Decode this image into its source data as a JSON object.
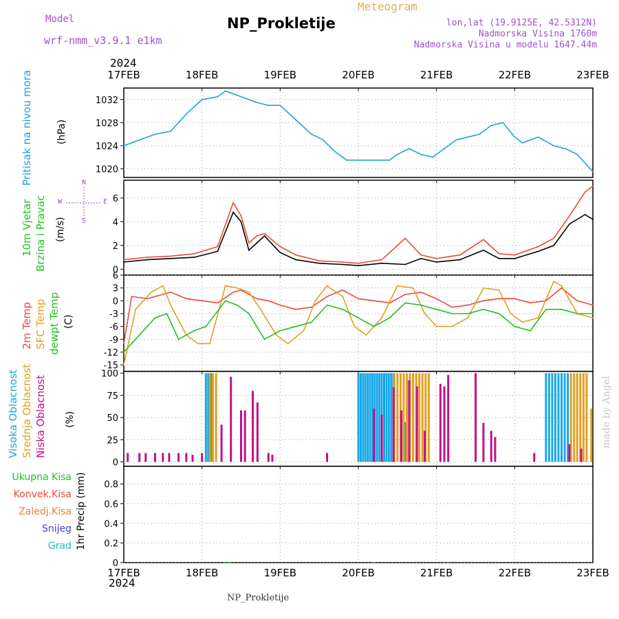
{
  "header": {
    "model_label": "Model",
    "model_name": "wrf-nmm_v3.9.1 e1km",
    "title": "NP_Prokletije",
    "product": "Meteogram",
    "coords": "lon,lat (19.9125E, 42.5312N)",
    "elevation": "Nadmorska Visina 1760m",
    "model_elevation": "Nadmorska Visina u modelu 1647.44m",
    "footer": "NP_Prokletije",
    "credit": "made by Angel",
    "year_top": "2024",
    "year_bottom": "2024"
  },
  "colors": {
    "pressure": "#1aa3e0",
    "t2m": "#e84a3a",
    "sfc": "#e0a020",
    "dewpt": "#22c022",
    "high_cloud": "#18a8e8",
    "mid_cloud": "#e0a020",
    "low_cloud": "#c0108a",
    "wind_speed": "#000000",
    "gust": "#e84a3a",
    "purple": "#a050d0"
  },
  "chart_data": [
    {
      "type": "line",
      "panel": "pressure",
      "y_labels": [
        "Pritisak na nivou mora",
        "(hPa)"
      ],
      "x_ticks": [
        "17FEB",
        "18FEB",
        "19FEB",
        "20FEB",
        "21FEB",
        "22FEB",
        "23FEB"
      ],
      "ylim": [
        1018.5,
        1034
      ],
      "yticks": [
        1020,
        1024,
        1028,
        1032
      ],
      "grid": true,
      "series": [
        {
          "color_key": "pressure",
          "x": [
            0,
            0.1,
            0.2,
            0.4,
            0.6,
            0.8,
            1.0,
            1.2,
            1.3,
            1.5,
            1.7,
            1.85,
            2.0,
            2.2,
            2.4,
            2.55,
            2.7,
            2.85,
            3.0,
            3.2,
            3.4,
            3.5,
            3.65,
            3.8,
            3.95,
            4.1,
            4.25,
            4.4,
            4.55,
            4.7,
            4.85,
            5.0,
            5.1,
            5.3,
            5.5,
            5.65,
            5.8,
            6.0
          ],
          "values": [
            1024,
            1024.5,
            1025,
            1026,
            1026.5,
            1029.5,
            1032,
            1032.5,
            1033.5,
            1032.5,
            1031.5,
            1031,
            1031,
            1028.5,
            1026,
            1025,
            1023,
            1021.5,
            1021.5,
            1021.5,
            1021.5,
            1022.5,
            1023.5,
            1022.5,
            1022,
            1023.5,
            1025,
            1025.5,
            1026,
            1027.5,
            1028,
            1025.5,
            1024.5,
            1025.5,
            1024,
            1023.5,
            1022.5,
            1019.5
          ]
        }
      ]
    },
    {
      "type": "line",
      "panel": "wind",
      "y_labels": [
        "10m Vjetar",
        "Brzina i Pravac",
        "(m/s)"
      ],
      "compass": {
        "n": "N",
        "w": "W",
        "e": "E",
        "s": "S"
      },
      "ylim": [
        -0.5,
        7.5
      ],
      "yticks": [
        0,
        2,
        4,
        6
      ],
      "grid": true,
      "series": [
        {
          "color_key": "wind_speed",
          "x": [
            0,
            0.3,
            0.6,
            0.9,
            1.2,
            1.4,
            1.5,
            1.6,
            1.7,
            1.8,
            2.0,
            2.2,
            2.5,
            2.8,
            3.0,
            3.3,
            3.6,
            3.8,
            4.0,
            4.3,
            4.6,
            4.8,
            5.0,
            5.3,
            5.5,
            5.7,
            5.9,
            6.0
          ],
          "values": [
            0.6,
            0.8,
            0.9,
            1.0,
            1.5,
            4.8,
            4.0,
            1.6,
            2.2,
            2.8,
            1.4,
            0.8,
            0.5,
            0.4,
            0.3,
            0.5,
            0.4,
            0.9,
            0.6,
            0.8,
            1.6,
            0.9,
            0.9,
            1.5,
            2.0,
            3.8,
            4.6,
            4.2
          ]
        },
        {
          "color_key": "gust",
          "x": [
            0,
            0.3,
            0.6,
            0.9,
            1.2,
            1.4,
            1.5,
            1.6,
            1.7,
            1.8,
            2.0,
            2.2,
            2.5,
            2.8,
            3.0,
            3.3,
            3.6,
            3.8,
            4.0,
            4.3,
            4.6,
            4.8,
            5.0,
            5.3,
            5.5,
            5.7,
            5.9,
            6.0
          ],
          "values": [
            0.8,
            1.0,
            1.1,
            1.3,
            1.9,
            5.6,
            4.5,
            2.2,
            2.8,
            3.0,
            1.9,
            1.2,
            0.7,
            0.6,
            0.5,
            0.8,
            2.6,
            1.2,
            0.9,
            1.2,
            2.5,
            1.3,
            1.2,
            1.9,
            2.6,
            4.5,
            6.5,
            7.0
          ]
        }
      ]
    },
    {
      "type": "line",
      "panel": "temperature",
      "y_labels": [
        "2m Temp",
        "SFC Temp",
        "dewpt Temp",
        "(C)"
      ],
      "ylim": [
        -16.5,
        6
      ],
      "yticks": [
        -15,
        -12,
        -9,
        -6,
        -3,
        0,
        3,
        6
      ],
      "grid": true,
      "series": [
        {
          "name": "2m Temp",
          "color_key": "t2m",
          "x": [
            0,
            0.1,
            0.3,
            0.5,
            0.6,
            0.8,
            1.0,
            1.2,
            1.4,
            1.5,
            1.7,
            1.85,
            2.0,
            2.2,
            2.4,
            2.6,
            2.8,
            3.0,
            3.2,
            3.4,
            3.6,
            3.8,
            4.0,
            4.2,
            4.4,
            4.6,
            4.8,
            5.0,
            5.2,
            5.4,
            5.6,
            5.8,
            6.0
          ],
          "values": [
            -10,
            1.0,
            0.5,
            1.5,
            2.0,
            0.5,
            0,
            -0.5,
            2.0,
            2.5,
            0.5,
            0,
            -1,
            -2,
            -1.5,
            1.0,
            2.5,
            0.5,
            0,
            -0.5,
            1.5,
            2.0,
            0.5,
            -1.5,
            -1,
            0,
            0.5,
            0.5,
            -0.5,
            0,
            3.0,
            0,
            -1
          ]
        },
        {
          "name": "SFC Temp",
          "color_key": "sfc",
          "x": [
            0,
            0.15,
            0.35,
            0.5,
            0.6,
            0.8,
            0.95,
            1.1,
            1.3,
            1.45,
            1.6,
            1.75,
            1.95,
            2.1,
            2.3,
            2.45,
            2.6,
            2.8,
            2.95,
            3.1,
            3.3,
            3.5,
            3.7,
            3.85,
            4.0,
            4.2,
            4.4,
            4.6,
            4.8,
            4.95,
            5.1,
            5.3,
            5.5,
            5.6,
            5.8,
            6.0
          ],
          "values": [
            -15,
            -2,
            2.0,
            3.5,
            -1,
            -8,
            -10,
            -10,
            3.5,
            3.0,
            2.0,
            -2,
            -8,
            -10,
            -7,
            0,
            3.5,
            1,
            -6,
            -8,
            -4,
            3.5,
            3.0,
            -3,
            -6,
            -6,
            -4,
            3.0,
            2.5,
            -3,
            -5,
            -4,
            4.5,
            3.5,
            -3,
            -4
          ]
        },
        {
          "name": "dewpt Temp",
          "color_key": "dewpt",
          "x": [
            0,
            0.2,
            0.4,
            0.55,
            0.7,
            0.9,
            1.05,
            1.3,
            1.45,
            1.6,
            1.8,
            2.0,
            2.2,
            2.4,
            2.6,
            2.8,
            3.0,
            3.2,
            3.4,
            3.6,
            3.8,
            4.0,
            4.2,
            4.4,
            4.6,
            4.8,
            5.0,
            5.2,
            5.4,
            5.6,
            5.8,
            6.0
          ],
          "values": [
            -12,
            -8,
            -4,
            -3,
            -9,
            -7,
            -6,
            0,
            -1,
            -3,
            -9,
            -7,
            -6,
            -5,
            -1,
            -2,
            -4,
            -6,
            -4,
            -0.5,
            -1,
            -2,
            -3,
            -3,
            -2,
            -3,
            -6,
            -7,
            -2,
            -2,
            -3,
            -3
          ]
        }
      ]
    },
    {
      "type": "bar",
      "panel": "clouds",
      "y_labels": [
        "Visoka Oblacnost",
        "Srednja Oblacnost",
        "Niska Oblacnost",
        "(%)"
      ],
      "ylim": [
        -5,
        102
      ],
      "yticks": [
        0,
        25,
        50,
        75,
        100
      ],
      "grid": true,
      "series": [
        {
          "name": "Visoka Oblacnost",
          "color_key": "high_cloud",
          "x": [
            1.05,
            1.08,
            1.12,
            3.0,
            3.03,
            3.06,
            3.09,
            3.12,
            3.15,
            3.18,
            3.21,
            3.24,
            3.27,
            3.3,
            3.33,
            3.36,
            3.39,
            3.42,
            3.45,
            3.6,
            5.4,
            5.44,
            5.48,
            5.52,
            5.56,
            5.6,
            5.64,
            5.68
          ],
          "values": [
            100,
            100,
            100,
            100,
            100,
            100,
            100,
            100,
            100,
            100,
            100,
            100,
            100,
            100,
            100,
            100,
            100,
            100,
            100,
            45,
            100,
            100,
            100,
            100,
            100,
            100,
            100,
            100
          ]
        },
        {
          "name": "Srednja Oblacnost",
          "color_key": "mid_cloud",
          "x": [
            1.1,
            1.14,
            1.18,
            3.46,
            3.5,
            3.54,
            3.58,
            3.62,
            3.66,
            3.7,
            3.74,
            3.78,
            3.82,
            3.86,
            3.9,
            5.72,
            5.76,
            5.8,
            5.84,
            5.88,
            5.92,
            5.98
          ],
          "values": [
            100,
            100,
            100,
            100,
            100,
            100,
            100,
            100,
            100,
            100,
            100,
            100,
            100,
            100,
            100,
            100,
            100,
            100,
            100,
            100,
            100,
            60
          ]
        },
        {
          "name": "Niska Oblacnost",
          "color_key": "low_cloud",
          "x": [
            0.05,
            0.2,
            0.28,
            0.4,
            0.5,
            0.58,
            0.7,
            0.8,
            0.88,
            1.0,
            1.25,
            1.37,
            1.5,
            1.55,
            1.65,
            1.71,
            1.85,
            1.9,
            2.6,
            3.2,
            3.3,
            3.45,
            3.55,
            3.65,
            3.75,
            3.85,
            4.05,
            4.1,
            4.15,
            4.5,
            4.6,
            4.7,
            4.75,
            5.25,
            5.7,
            5.85
          ],
          "values": [
            10,
            10,
            10,
            10,
            10,
            10,
            10,
            10,
            8,
            10,
            42,
            96,
            58,
            58,
            80,
            67,
            10,
            8,
            10,
            60,
            53,
            84,
            58,
            92,
            85,
            35,
            88,
            85,
            98,
            100,
            44,
            35,
            28,
            10,
            20,
            15
          ]
        }
      ]
    },
    {
      "type": "bar",
      "panel": "precip",
      "y_labels": [
        "Ukupna Kisa",
        "Konvek.Kisa",
        "Zaledj.Kisa",
        "Snijeg",
        "Grad",
        "1hr Precip (mm)"
      ],
      "ylim": [
        0,
        0.98
      ],
      "yticks": [
        0,
        0.2,
        0.4,
        0.6,
        0.8
      ],
      "grid": true,
      "series": [
        {
          "name": "Ukupna Kisa",
          "color_key": "dewpt",
          "x": [
            1.3,
            1.35,
            3.2,
            4.1,
            4.15
          ],
          "values": [
            0.005,
            0.005,
            0.005,
            0.005,
            0.005
          ]
        }
      ]
    }
  ]
}
